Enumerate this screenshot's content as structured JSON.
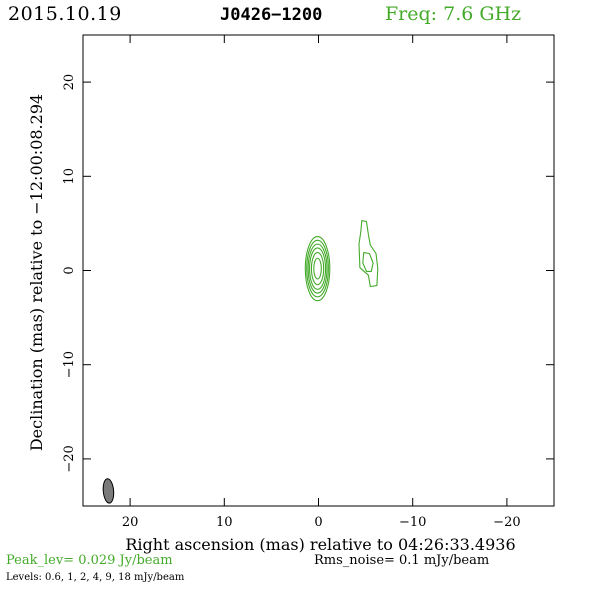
{
  "header": {
    "date": "2015.10.19",
    "source": "J0426−1200",
    "frequency": "Freq: 7.6 GHz"
  },
  "footer": {
    "peak": "Peak_lev=  0.029 Jy/beam",
    "rms": "Rms_noise=   0.1 mJy/beam",
    "levels": "Levels: 0.6,    1,    2,    4,    9,   18 mJy/beam"
  },
  "colors": {
    "contour": "#44aa2a",
    "beam_fill": "#7a7a7a",
    "frame": "#000000"
  },
  "chart_data": {
    "type": "contour",
    "xlabel": "Right ascension (mas) relative to 04:26:33.4936",
    "ylabel": "Declination (mas) relative to −12:00:08.294",
    "xlim": [
      25,
      -25
    ],
    "ylim": [
      -25,
      25
    ],
    "x_ticks": [
      20,
      10,
      0,
      -10,
      -20
    ],
    "y_ticks": [
      20,
      10,
      0,
      -10,
      -20
    ],
    "x_tick_labels": [
      "20",
      "10",
      "0",
      "−10",
      "−20"
    ],
    "y_tick_labels": [
      "20",
      "10",
      "0",
      "−10",
      "−20"
    ],
    "contour_levels_mJy": [
      0.6,
      1,
      2,
      4,
      9,
      18
    ],
    "peak_Jy_per_beam": 0.029,
    "rms_noise_mJy_per_beam": 0.1,
    "core": {
      "center": [
        0.1,
        0.2
      ],
      "contours": [
        {
          "rx": 1.3,
          "ry": 3.4
        },
        {
          "rx": 1.15,
          "ry": 3.0
        },
        {
          "rx": 1.0,
          "ry": 2.6
        },
        {
          "rx": 0.85,
          "ry": 2.2
        },
        {
          "rx": 0.65,
          "ry": 1.7
        },
        {
          "rx": 0.4,
          "ry": 1.1
        }
      ]
    },
    "jet_component": {
      "outer_contour": [
        [
          -4.6,
          5.3
        ],
        [
          -5.1,
          5.2
        ],
        [
          -5.3,
          3.8
        ],
        [
          -5.5,
          2.7
        ],
        [
          -6.1,
          1.8
        ],
        [
          -6.3,
          0.2
        ],
        [
          -6.2,
          -1.6
        ],
        [
          -5.5,
          -1.7
        ],
        [
          -5.3,
          -0.5
        ],
        [
          -4.4,
          0.3
        ],
        [
          -4.3,
          2.8
        ],
        [
          -4.5,
          4.2
        ]
      ],
      "inner_contour": [
        [
          -4.8,
          1.9
        ],
        [
          -5.4,
          1.8
        ],
        [
          -5.8,
          0.8
        ],
        [
          -5.6,
          -0.1
        ],
        [
          -5.1,
          -0.1
        ],
        [
          -4.7,
          0.8
        ]
      ]
    },
    "beam": {
      "center": [
        22.3,
        -23.4
      ],
      "major": 2.6,
      "minor": 1.1,
      "pa_deg": 5
    }
  }
}
